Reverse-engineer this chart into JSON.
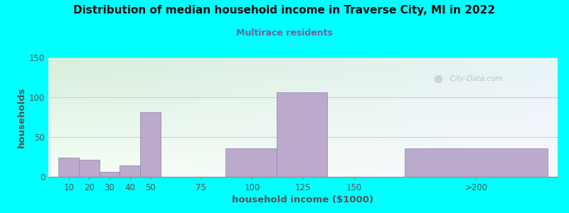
{
  "title": "Distribution of median household income in Traverse City, MI in 2022",
  "subtitle": "Multirace residents",
  "xlabel": "household income ($1000)",
  "ylabel": "households",
  "background_color": "#00FFFF",
  "plot_bg_top_left": "#d8eeda",
  "plot_bg_bottom_right": "#f8f8ff",
  "bar_color": "#bbaacb",
  "bar_edgecolor": "#9080a8",
  "title_color": "#111111",
  "subtitle_color": "#7060a0",
  "axis_label_color": "#555555",
  "tick_label_color": "#555555",
  "watermark": "  City-Data.com",
  "values": [
    24,
    21,
    6,
    14,
    81,
    0,
    36,
    106,
    0,
    36
  ],
  "bar_lefts": [
    5,
    15,
    25,
    35,
    45,
    62,
    87,
    112,
    137,
    175
  ],
  "bar_widths": [
    10,
    10,
    10,
    10,
    10,
    25,
    25,
    25,
    25,
    70
  ],
  "ylim": [
    0,
    150
  ],
  "yticks": [
    0,
    50,
    100,
    150
  ],
  "xticks_labels": [
    "10",
    "20",
    "30",
    "40",
    "50",
    "75",
    "100",
    "125",
    "150",
    ">200"
  ],
  "xticks_pos": [
    10,
    20,
    30,
    40,
    50,
    75,
    100,
    125,
    150,
    210
  ],
  "xlim": [
    0,
    250
  ]
}
